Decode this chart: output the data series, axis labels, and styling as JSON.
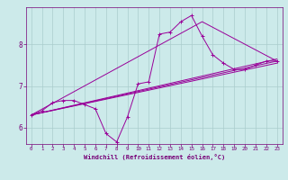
{
  "background_color": "#cceaea",
  "line_color": "#990099",
  "grid_color": "#aacccc",
  "xlabel": "Windchill (Refroidissement éolien,°C)",
  "xlabel_color": "#770077",
  "tick_color": "#770077",
  "xlim": [
    -0.5,
    23.5
  ],
  "ylim": [
    5.6,
    8.9
  ],
  "yticks": [
    6,
    7,
    8
  ],
  "xticks": [
    0,
    1,
    2,
    3,
    4,
    5,
    6,
    7,
    8,
    9,
    10,
    11,
    12,
    13,
    14,
    15,
    16,
    17,
    18,
    19,
    20,
    21,
    22,
    23
  ],
  "series": [
    {
      "x": [
        0,
        1,
        2,
        3,
        4,
        5,
        6,
        7,
        8,
        9,
        10,
        11,
        12,
        13,
        14,
        15,
        16,
        17,
        18,
        19,
        20,
        21,
        22,
        23
      ],
      "y": [
        6.3,
        6.4,
        6.6,
        6.65,
        6.65,
        6.55,
        6.45,
        5.85,
        5.65,
        6.25,
        7.05,
        7.1,
        8.25,
        8.3,
        8.55,
        8.7,
        8.2,
        7.75,
        7.55,
        7.4,
        7.4,
        7.5,
        7.6,
        7.6
      ],
      "marker": true
    },
    {
      "x": [
        0,
        23
      ],
      "y": [
        6.3,
        7.6
      ],
      "marker": false
    },
    {
      "x": [
        0,
        23
      ],
      "y": [
        6.3,
        7.55
      ],
      "marker": false
    },
    {
      "x": [
        0,
        23
      ],
      "y": [
        6.3,
        7.65
      ],
      "marker": false
    },
    {
      "x": [
        0,
        16,
        23
      ],
      "y": [
        6.3,
        8.55,
        7.6
      ],
      "marker": false
    }
  ]
}
